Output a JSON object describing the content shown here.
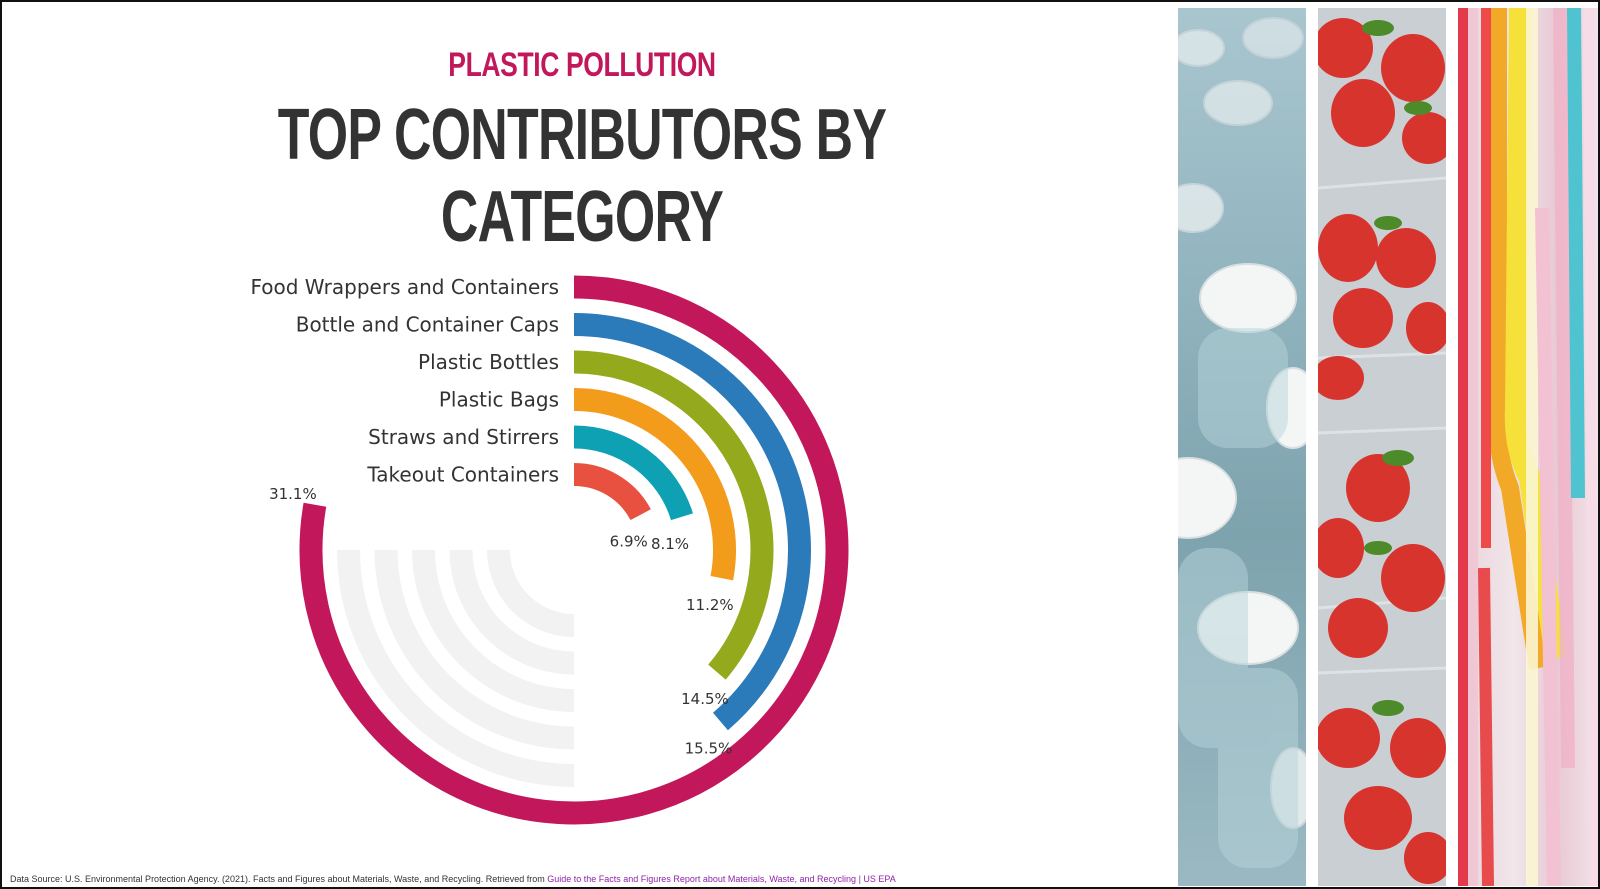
{
  "header": {
    "kicker": "PLASTIC POLLUTION",
    "title": "TOP CONTRIBUTORS BY CATEGORY"
  },
  "chart_data": {
    "type": "radial bar",
    "title": "TOP CONTRIBUTORS BY CATEGORY",
    "subtitle": "PLASTIC POLLUTION",
    "value_scale_max": 40,
    "categories": [
      "Food Wrappers and Containers",
      "Bottle and Container Caps",
      "Plastic Bottles",
      "Plastic Bags",
      "Straws and Stirrers",
      "Takeout Containers"
    ],
    "values": [
      31.1,
      15.5,
      14.5,
      11.2,
      8.1,
      6.9
    ],
    "value_labels": [
      "31.1%",
      "15.5%",
      "14.5%",
      "11.2%",
      "8.1%",
      "6.9%"
    ],
    "colors": [
      "#c2185b",
      "#2b7bbb",
      "#94a91c",
      "#f39c1b",
      "#0ea1b3",
      "#e8503f"
    ],
    "track_color": "#f2f2f2"
  },
  "source": {
    "text": "Data Source: U.S. Environmental Protection Agency. (2021). Facts and Figures about Materials, Waste, and Recycling. Retrieved from ",
    "link_text": "Guide to the Facts and Figures Report about Materials, Waste, and Recycling | US EPA"
  },
  "images": [
    {
      "name": "water-bottles-photo"
    },
    {
      "name": "strawberries-photo"
    },
    {
      "name": "plastic-straws-photo"
    }
  ]
}
